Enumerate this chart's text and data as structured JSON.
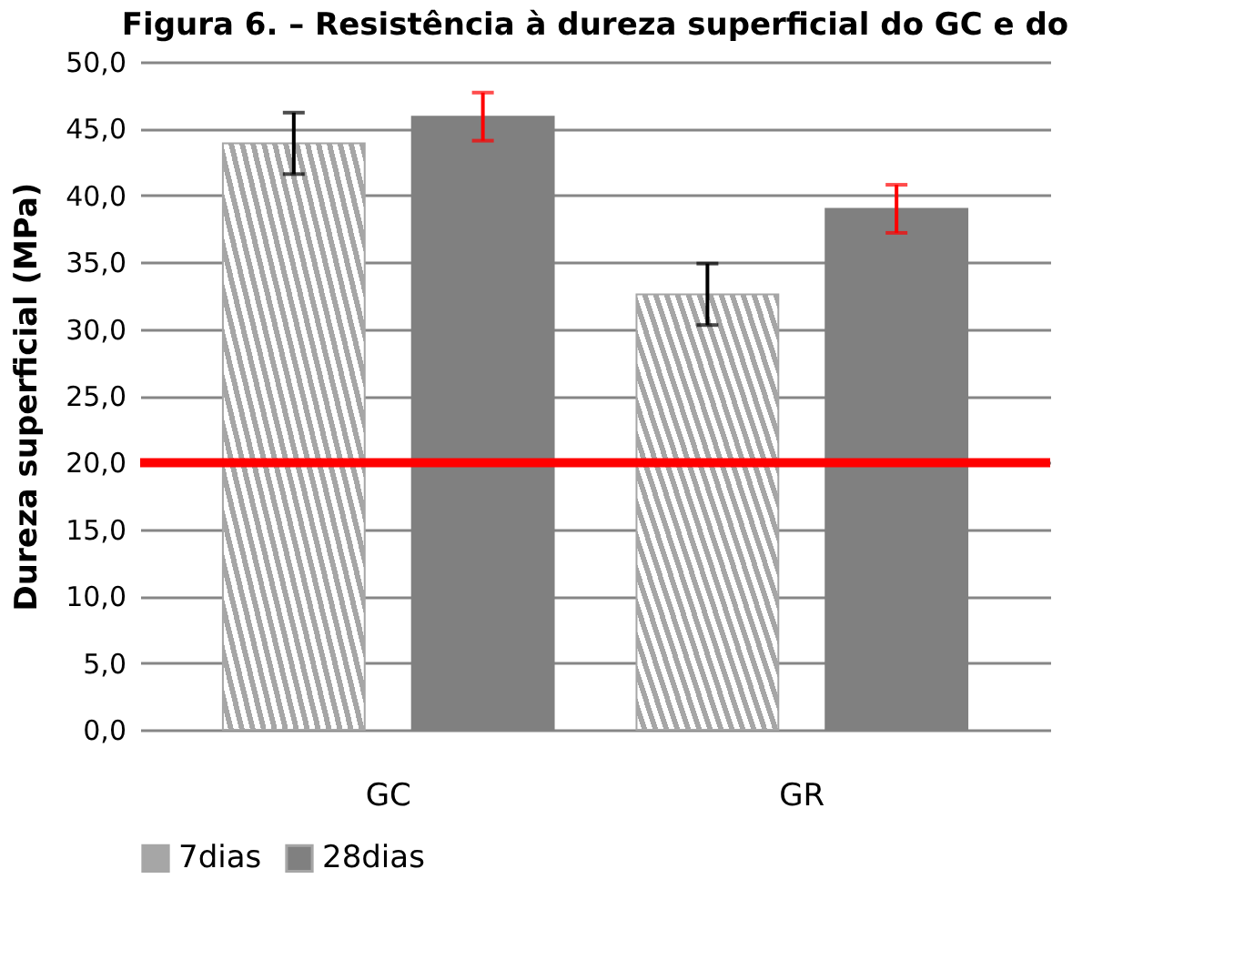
{
  "chart_data": {
    "type": "bar",
    "title": "Figura 6. – Resistência à dureza superficial do GC e do",
    "ylabel": "Dureza superficial (MPa)",
    "categories": [
      "GC",
      "GR"
    ],
    "series": [
      {
        "name": "7dias",
        "color": "#a6a6a6",
        "values": [
          43.9,
          32.6
        ],
        "errors": [
          2.3,
          2.3
        ]
      },
      {
        "name": "28dias",
        "color": "#808080",
        "values": [
          45.9,
          39.0
        ],
        "errors": [
          1.8,
          1.8
        ]
      }
    ],
    "ylim": [
      0,
      50
    ],
    "yticks": [
      {
        "value": 0,
        "label": "0,0"
      },
      {
        "value": 5,
        "label": "5,0"
      },
      {
        "value": 10,
        "label": "10,0"
      },
      {
        "value": 15,
        "label": "15,0"
      },
      {
        "value": 20,
        "label": "20,0"
      },
      {
        "value": 25,
        "label": "25,0"
      },
      {
        "value": 30,
        "label": "30,0"
      },
      {
        "value": 35,
        "label": "35,0"
      },
      {
        "value": 40,
        "label": "40,0"
      },
      {
        "value": 45,
        "label": "45,0"
      },
      {
        "value": 50,
        "label": "50,0"
      }
    ],
    "ref_lines": [
      {
        "axis": "y",
        "value": 20,
        "color": "#ff0000"
      }
    ],
    "grid": "y",
    "legend": "bottom"
  }
}
